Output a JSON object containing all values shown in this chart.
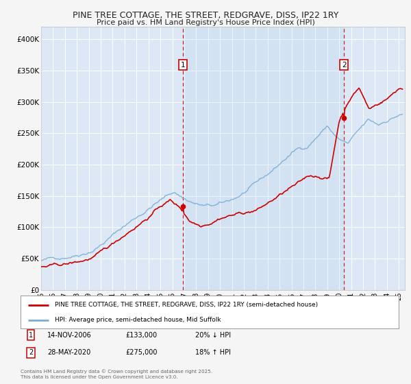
{
  "title1": "PINE TREE COTTAGE, THE STREET, REDGRAVE, DISS, IP22 1RY",
  "title2": "Price paid vs. HM Land Registry's House Price Index (HPI)",
  "xlim_start": 1995.0,
  "xlim_end": 2025.5,
  "ylim_min": 0,
  "ylim_max": 420000,
  "background_color": "#f5f5f5",
  "plot_bg_color": "#dce8f5",
  "grid_color": "#ffffff",
  "red_color": "#cc0000",
  "blue_color": "#7aadd4",
  "sale1_date": 2006.87,
  "sale1_price": 133000,
  "sale1_label": "1",
  "sale2_date": 2020.41,
  "sale2_price": 275000,
  "sale2_label": "2",
  "legend_red": "PINE TREE COTTAGE, THE STREET, REDGRAVE, DISS, IP22 1RY (semi-detached house)",
  "legend_blue": "HPI: Average price, semi-detached house, Mid Suffolk",
  "footer": "Contains HM Land Registry data © Crown copyright and database right 2025.\nThis data is licensed under the Open Government Licence v3.0.",
  "yticks": [
    0,
    50000,
    100000,
    150000,
    200000,
    250000,
    300000,
    350000,
    400000
  ],
  "ytick_labels": [
    "£0",
    "£50K",
    "£100K",
    "£150K",
    "£200K",
    "£250K",
    "£300K",
    "£350K",
    "£400K"
  ],
  "xticks": [
    1995,
    1996,
    1997,
    1998,
    1999,
    2000,
    2001,
    2002,
    2003,
    2004,
    2005,
    2006,
    2007,
    2008,
    2009,
    2010,
    2011,
    2012,
    2013,
    2014,
    2015,
    2016,
    2017,
    2018,
    2019,
    2020,
    2021,
    2022,
    2023,
    2024,
    2025
  ],
  "hpi_base": [
    47000,
    49000,
    52000,
    57000,
    63000,
    70000,
    82000,
    95000,
    108000,
    120000,
    132000,
    145000,
    155000,
    165000,
    155000,
    148000,
    143000,
    142000,
    145000,
    152000,
    162000,
    172000,
    183000,
    197000,
    212000,
    225000,
    230000,
    248000,
    265000,
    245000,
    235000,
    252000,
    268000,
    260000,
    270000,
    278000
  ],
  "prop_base": [
    37000,
    37500,
    38000,
    40000,
    43000,
    48000,
    55000,
    65000,
    78000,
    92000,
    105000,
    118000,
    133000,
    142000,
    130000,
    110000,
    105000,
    112000,
    122000,
    127000,
    130000,
    133000,
    138000,
    148000,
    158000,
    168000,
    175000,
    185000,
    185000,
    183000,
    275000,
    310000,
    330000,
    295000,
    305000,
    315000,
    330000
  ]
}
